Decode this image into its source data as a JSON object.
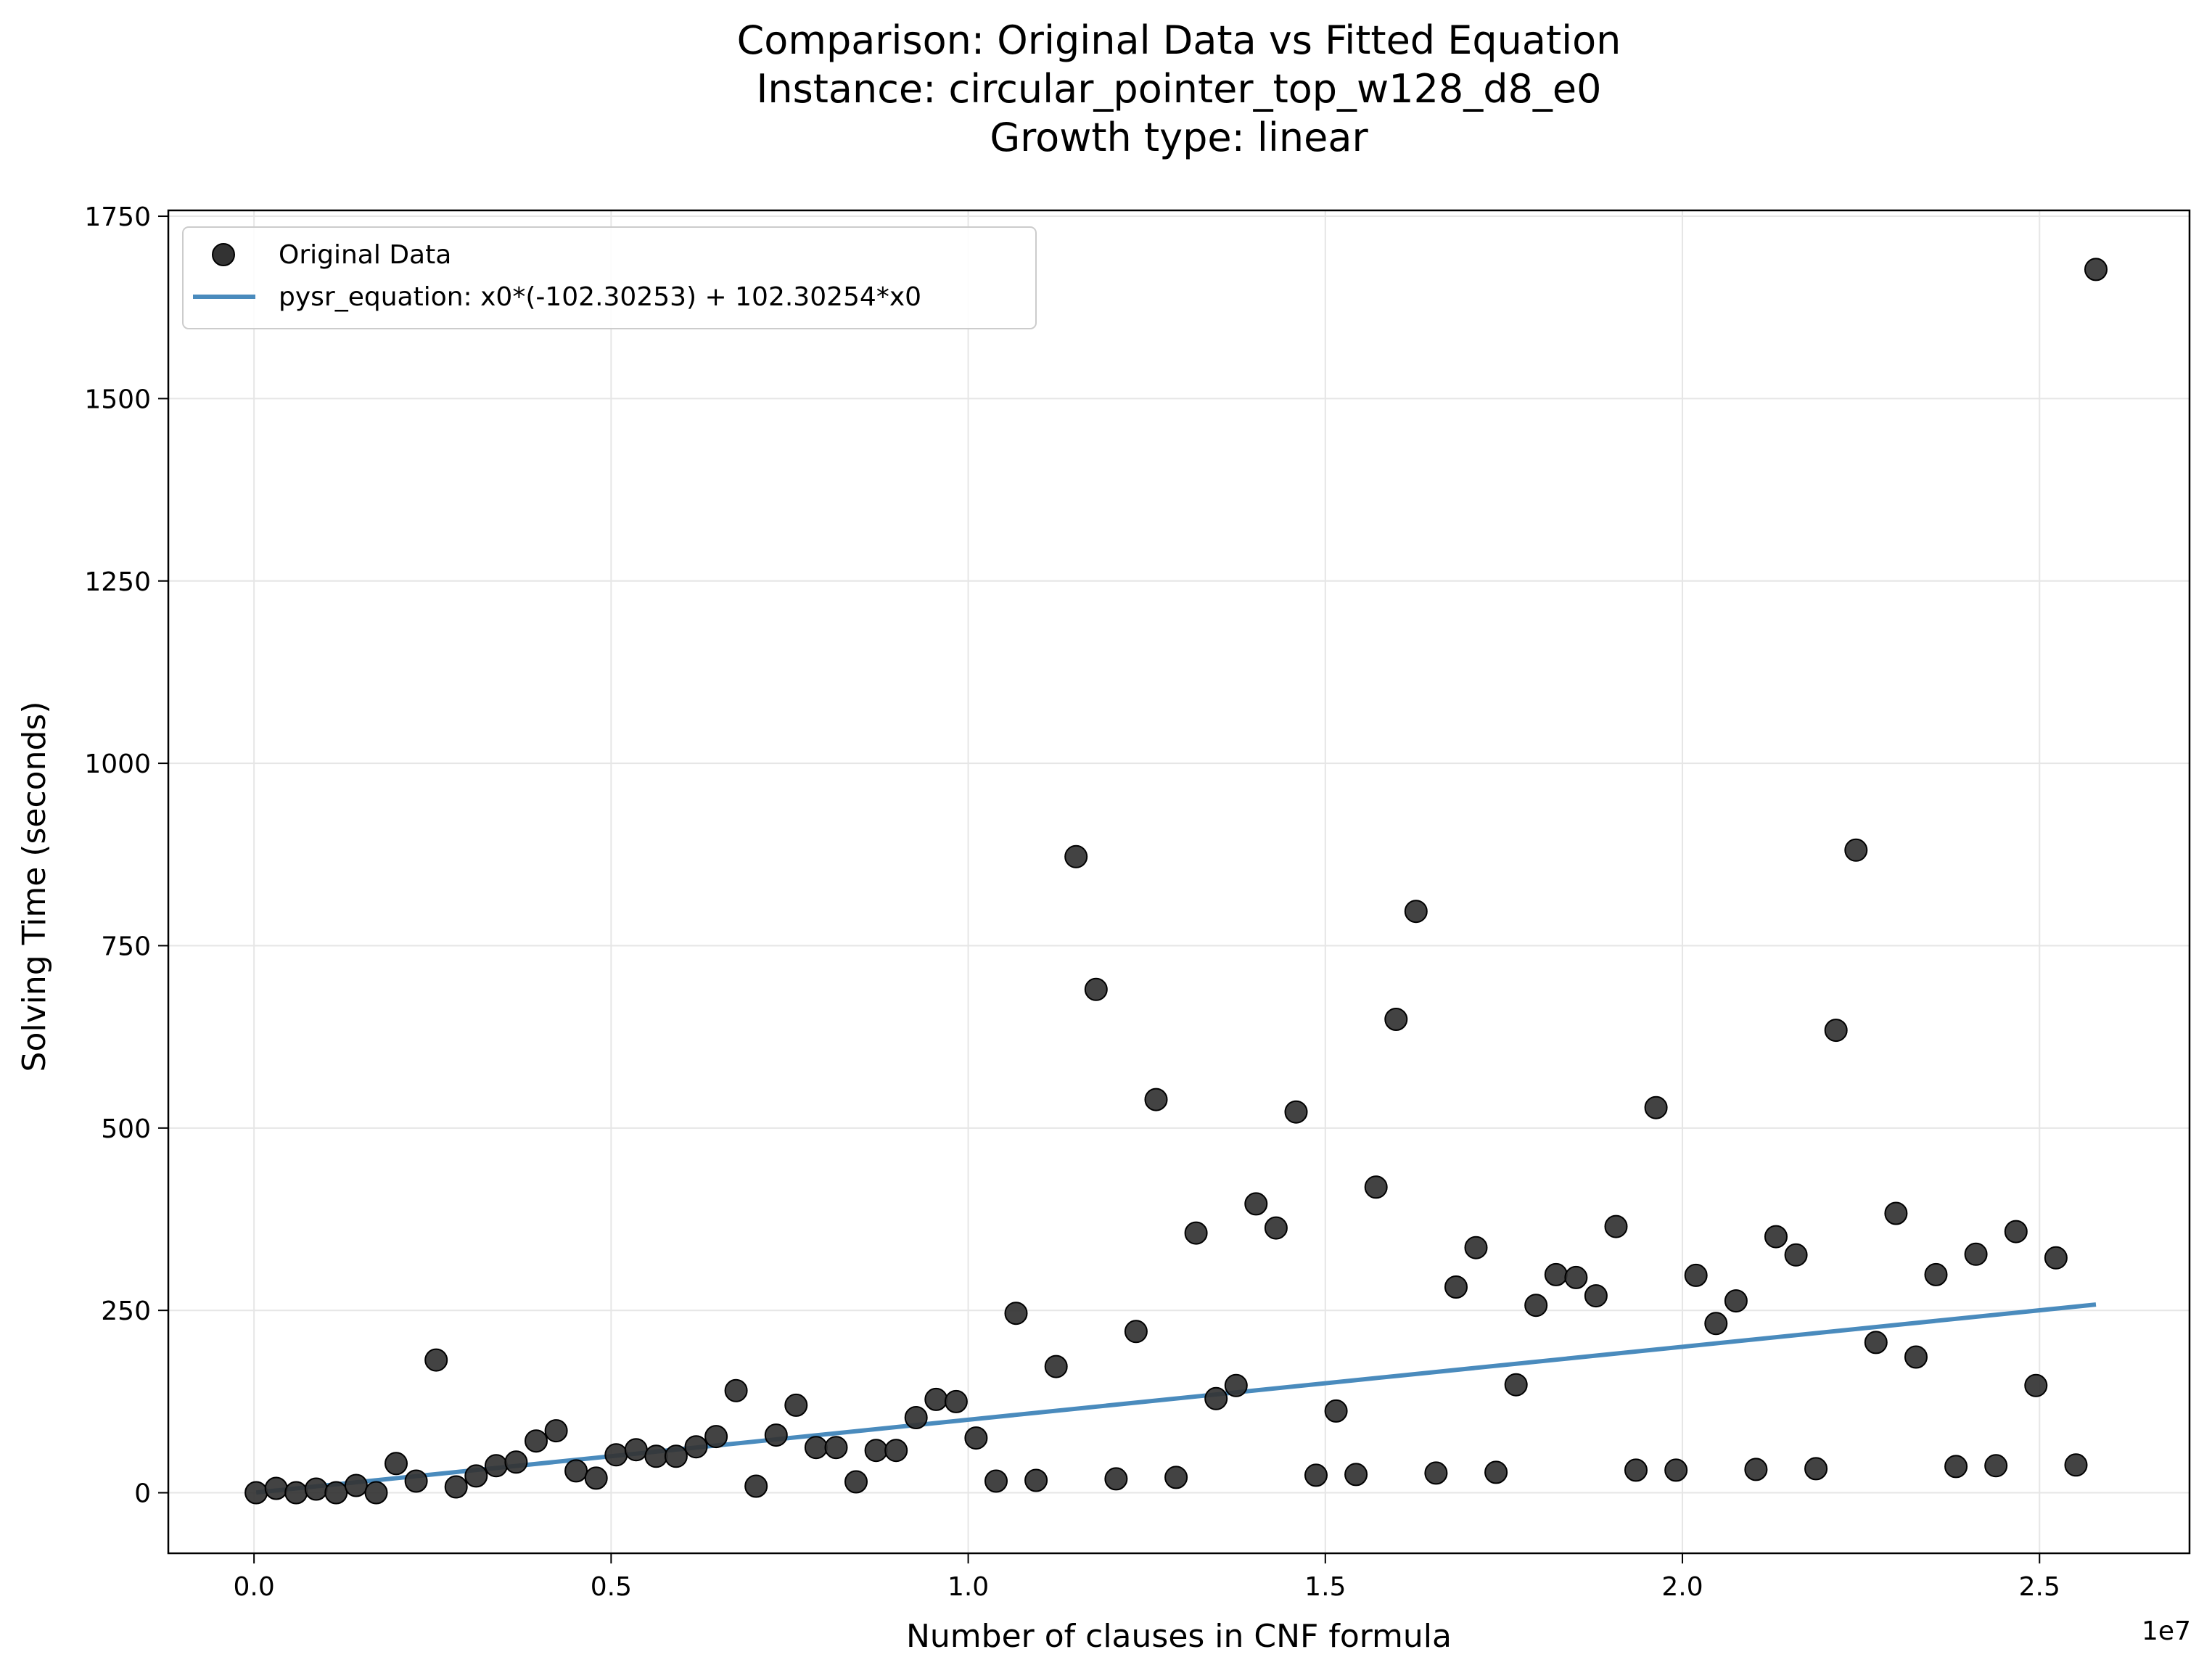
{
  "chart_data": {
    "type": "scatter",
    "title_lines": [
      "Comparison: Original Data vs Fitted Equation",
      "Instance: circular_pointer_top_w128_d8_e0",
      "Growth type: linear"
    ],
    "xlabel": "Number of clauses in CNF formula",
    "ylabel": "Solving Time (seconds)",
    "x_offset_label": "1e7",
    "xlim": [
      -0.12,
      2.71
    ],
    "ylim": [
      -83,
      1758
    ],
    "x_scale_note": "x values in units of 1e7",
    "xticks": [
      0.0,
      0.5,
      1.0,
      1.5,
      2.0,
      2.5
    ],
    "xtick_labels": [
      "0.0",
      "0.5",
      "1.0",
      "1.5",
      "2.0",
      "2.5"
    ],
    "yticks": [
      0,
      250,
      500,
      750,
      1000,
      1250,
      1500,
      1750
    ],
    "ytick_labels": [
      "0",
      "250",
      "500",
      "750",
      "1000",
      "1250",
      "1500",
      "1750"
    ],
    "grid": true,
    "legend_position": "top-left",
    "series": [
      {
        "name": "Original Data",
        "kind": "scatter",
        "color": "#333333",
        "points": [
          [
            0.003,
            0
          ],
          [
            0.031,
            6
          ],
          [
            0.059,
            0
          ],
          [
            0.087,
            5
          ],
          [
            0.115,
            0
          ],
          [
            0.143,
            10
          ],
          [
            0.171,
            0
          ],
          [
            0.199,
            40
          ],
          [
            0.227,
            16
          ],
          [
            0.255,
            182
          ],
          [
            0.283,
            8
          ],
          [
            0.311,
            23
          ],
          [
            0.339,
            37
          ],
          [
            0.367,
            42
          ],
          [
            0.395,
            71
          ],
          [
            0.423,
            85
          ],
          [
            0.451,
            30
          ],
          [
            0.479,
            20
          ],
          [
            0.507,
            52
          ],
          [
            0.535,
            59
          ],
          [
            0.563,
            50
          ],
          [
            0.591,
            50
          ],
          [
            0.619,
            63
          ],
          [
            0.647,
            77
          ],
          [
            0.675,
            140
          ],
          [
            0.703,
            9
          ],
          [
            0.731,
            79
          ],
          [
            0.759,
            120
          ],
          [
            0.787,
            62
          ],
          [
            0.815,
            62
          ],
          [
            0.843,
            15
          ],
          [
            0.871,
            58
          ],
          [
            0.899,
            58
          ],
          [
            0.927,
            103
          ],
          [
            0.955,
            128
          ],
          [
            0.983,
            125
          ],
          [
            1.011,
            75
          ],
          [
            1.039,
            16
          ],
          [
            1.067,
            246
          ],
          [
            1.095,
            17
          ],
          [
            1.123,
            173
          ],
          [
            1.151,
            872
          ],
          [
            1.179,
            690
          ],
          [
            1.207,
            19
          ],
          [
            1.235,
            221
          ],
          [
            1.263,
            539
          ],
          [
            1.291,
            21
          ],
          [
            1.319,
            356
          ],
          [
            1.347,
            129
          ],
          [
            1.375,
            147
          ],
          [
            1.403,
            396
          ],
          [
            1.431,
            363
          ],
          [
            1.459,
            522
          ],
          [
            1.487,
            24
          ],
          [
            1.515,
            112
          ],
          [
            1.543,
            25
          ],
          [
            1.571,
            419
          ],
          [
            1.599,
            649
          ],
          [
            1.627,
            797
          ],
          [
            1.655,
            27
          ],
          [
            1.683,
            282
          ],
          [
            1.711,
            336
          ],
          [
            1.739,
            28
          ],
          [
            1.767,
            148
          ],
          [
            1.795,
            257
          ],
          [
            1.823,
            299
          ],
          [
            1.851,
            295
          ],
          [
            1.879,
            270
          ],
          [
            1.907,
            365
          ],
          [
            1.935,
            31
          ],
          [
            1.963,
            528
          ],
          [
            1.991,
            31
          ],
          [
            2.019,
            298
          ],
          [
            2.047,
            232
          ],
          [
            2.075,
            263
          ],
          [
            2.103,
            32
          ],
          [
            2.131,
            351
          ],
          [
            2.159,
            326
          ],
          [
            2.187,
            33
          ],
          [
            2.215,
            634
          ],
          [
            2.243,
            881
          ],
          [
            2.271,
            206
          ],
          [
            2.299,
            383
          ],
          [
            2.327,
            186
          ],
          [
            2.355,
            299
          ],
          [
            2.383,
            36
          ],
          [
            2.411,
            327
          ],
          [
            2.439,
            37
          ],
          [
            2.467,
            358
          ],
          [
            2.495,
            147
          ],
          [
            2.523,
            322
          ],
          [
            2.551,
            38
          ],
          [
            2.579,
            1677
          ]
        ]
      },
      {
        "name": "pysr_equation: x0*(-102.30253) + 102.30254*x0",
        "kind": "line",
        "color": "#4a8bbd",
        "points": [
          [
            0.003,
            0.3
          ],
          [
            2.579,
            258
          ]
        ]
      }
    ]
  }
}
